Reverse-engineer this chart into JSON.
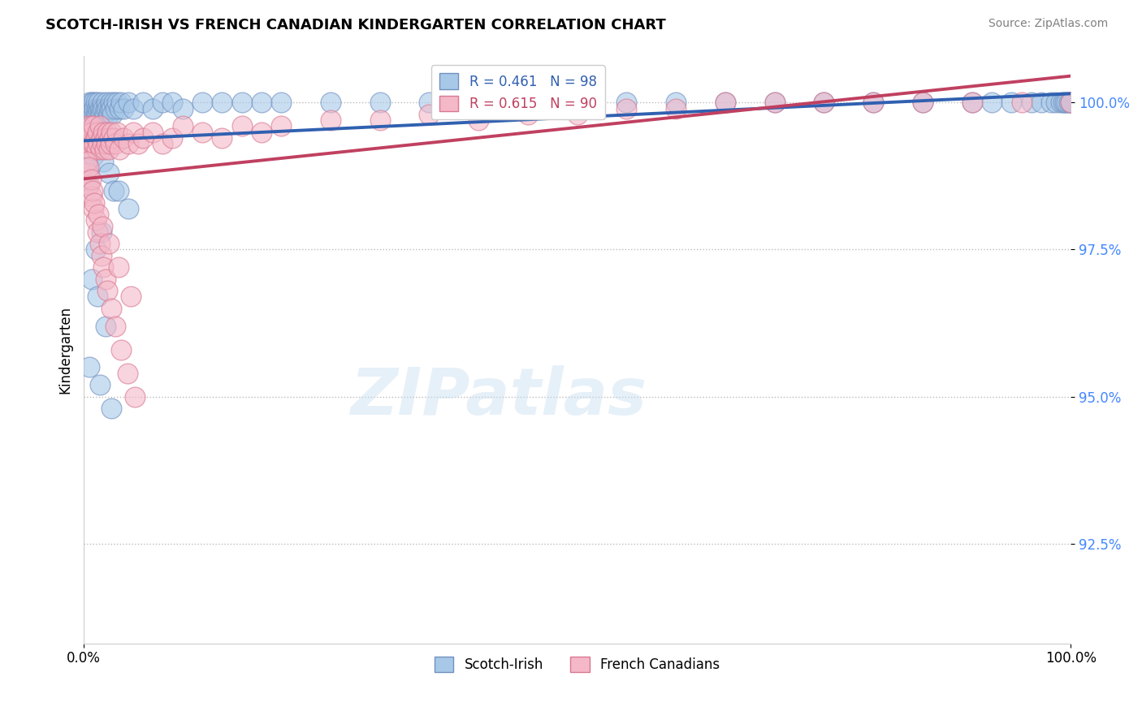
{
  "title": "SCOTCH-IRISH VS FRENCH CANADIAN KINDERGARTEN CORRELATION CHART",
  "source_text": "Source: ZipAtlas.com",
  "ylabel": "Kindergarten",
  "xlim": [
    0,
    1
  ],
  "ylim": [
    0.908,
    1.008
  ],
  "yticks": [
    0.925,
    0.95,
    0.975,
    1.0
  ],
  "ytick_labels": [
    "92.5%",
    "95.0%",
    "97.5%",
    "100.0%"
  ],
  "xtick_labels": [
    "0.0%",
    "100.0%"
  ],
  "blue_R": 0.461,
  "blue_N": 98,
  "pink_R": 0.615,
  "pink_N": 90,
  "blue_fill": "#a8c8e8",
  "pink_fill": "#f4b8c8",
  "blue_edge": "#7090c0",
  "pink_edge": "#d87890",
  "blue_line": "#3060b0",
  "pink_line": "#c04060",
  "legend_text_blue": "#3060b0",
  "legend_text_pink": "#c04060",
  "background_color": "#ffffff",
  "watermark": "ZIPatlas",
  "label_blue": "Scotch-Irish",
  "label_pink": "French Canadians",
  "blue_x": [
    0.001,
    0.002,
    0.003,
    0.004,
    0.005,
    0.005,
    0.006,
    0.006,
    0.007,
    0.007,
    0.008,
    0.008,
    0.009,
    0.009,
    0.01,
    0.01,
    0.011,
    0.012,
    0.012,
    0.013,
    0.014,
    0.015,
    0.015,
    0.016,
    0.017,
    0.018,
    0.019,
    0.02,
    0.021,
    0.022,
    0.023,
    0.024,
    0.025,
    0.026,
    0.027,
    0.028,
    0.029,
    0.03,
    0.032,
    0.034,
    0.036,
    0.038,
    0.04,
    0.045,
    0.05,
    0.06,
    0.07,
    0.08,
    0.09,
    0.1,
    0.12,
    0.14,
    0.16,
    0.18,
    0.2,
    0.25,
    0.3,
    0.35,
    0.4,
    0.45,
    0.5,
    0.55,
    0.6,
    0.65,
    0.7,
    0.75,
    0.8,
    0.85,
    0.9,
    0.92,
    0.94,
    0.96,
    0.97,
    0.98,
    0.985,
    0.99,
    0.992,
    0.994,
    0.996,
    0.998,
    1.0,
    0.004,
    0.005,
    0.01,
    0.015,
    0.02,
    0.025,
    0.03,
    0.012,
    0.018,
    0.008,
    0.014,
    0.022,
    0.006,
    0.016,
    0.028,
    0.035,
    0.045
  ],
  "blue_y": [
    0.997,
    0.998,
    0.999,
    0.998,
    0.999,
    0.997,
    0.998,
    1.0,
    0.997,
    0.999,
    0.998,
    1.0,
    0.997,
    0.999,
    0.998,
    1.0,
    0.999,
    0.998,
    1.0,
    0.999,
    0.998,
    0.999,
    1.0,
    0.999,
    0.998,
    0.999,
    1.0,
    0.999,
    0.998,
    0.999,
    1.0,
    0.999,
    0.998,
    0.999,
    1.0,
    0.999,
    0.998,
    1.0,
    0.999,
    1.0,
    0.999,
    1.0,
    0.999,
    1.0,
    0.999,
    1.0,
    0.999,
    1.0,
    1.0,
    0.999,
    1.0,
    1.0,
    1.0,
    1.0,
    1.0,
    1.0,
    1.0,
    1.0,
    1.0,
    1.0,
    1.0,
    1.0,
    1.0,
    1.0,
    1.0,
    1.0,
    1.0,
    1.0,
    1.0,
    1.0,
    1.0,
    1.0,
    1.0,
    1.0,
    1.0,
    1.0,
    1.0,
    1.0,
    1.0,
    1.0,
    1.0,
    0.986,
    0.989,
    0.991,
    0.993,
    0.99,
    0.988,
    0.985,
    0.975,
    0.978,
    0.97,
    0.967,
    0.962,
    0.955,
    0.952,
    0.948,
    0.985,
    0.982
  ],
  "pink_x": [
    0.001,
    0.002,
    0.003,
    0.004,
    0.004,
    0.005,
    0.006,
    0.007,
    0.007,
    0.008,
    0.009,
    0.01,
    0.011,
    0.012,
    0.013,
    0.014,
    0.015,
    0.016,
    0.017,
    0.018,
    0.019,
    0.02,
    0.021,
    0.022,
    0.023,
    0.024,
    0.025,
    0.026,
    0.027,
    0.028,
    0.03,
    0.032,
    0.034,
    0.036,
    0.04,
    0.045,
    0.05,
    0.055,
    0.06,
    0.07,
    0.08,
    0.09,
    0.1,
    0.12,
    0.14,
    0.16,
    0.18,
    0.2,
    0.25,
    0.3,
    0.35,
    0.4,
    0.45,
    0.5,
    0.55,
    0.6,
    0.65,
    0.7,
    0.75,
    0.8,
    0.85,
    0.9,
    0.95,
    1.0,
    0.004,
    0.006,
    0.008,
    0.01,
    0.012,
    0.014,
    0.016,
    0.018,
    0.02,
    0.022,
    0.024,
    0.028,
    0.032,
    0.038,
    0.044,
    0.052,
    0.003,
    0.005,
    0.007,
    0.009,
    0.011,
    0.015,
    0.019,
    0.025,
    0.035,
    0.048
  ],
  "pink_y": [
    0.994,
    0.993,
    0.995,
    0.993,
    0.996,
    0.994,
    0.993,
    0.996,
    0.992,
    0.995,
    0.993,
    0.996,
    0.993,
    0.994,
    0.992,
    0.995,
    0.993,
    0.996,
    0.992,
    0.994,
    0.993,
    0.995,
    0.992,
    0.994,
    0.993,
    0.995,
    0.992,
    0.994,
    0.993,
    0.995,
    0.994,
    0.993,
    0.995,
    0.992,
    0.994,
    0.993,
    0.995,
    0.993,
    0.994,
    0.995,
    0.993,
    0.994,
    0.996,
    0.995,
    0.994,
    0.996,
    0.995,
    0.996,
    0.997,
    0.997,
    0.998,
    0.997,
    0.998,
    0.998,
    0.999,
    0.999,
    1.0,
    1.0,
    1.0,
    1.0,
    1.0,
    1.0,
    1.0,
    1.0,
    0.988,
    0.986,
    0.984,
    0.982,
    0.98,
    0.978,
    0.976,
    0.974,
    0.972,
    0.97,
    0.968,
    0.965,
    0.962,
    0.958,
    0.954,
    0.95,
    0.99,
    0.989,
    0.987,
    0.985,
    0.983,
    0.981,
    0.979,
    0.976,
    0.972,
    0.967
  ]
}
